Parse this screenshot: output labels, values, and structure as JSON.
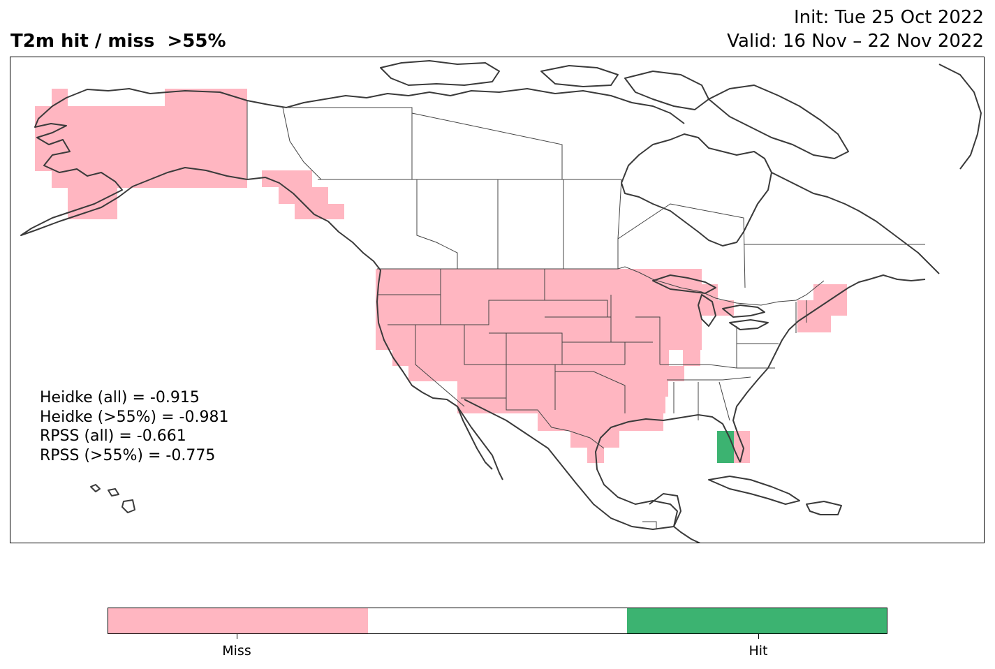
{
  "header": {
    "title": "T2m hit / miss  >55%",
    "init": "Init: Tue 25 Oct 2022",
    "valid": "Valid: 16 Nov – 22 Nov 2022"
  },
  "scores": [
    "Heidke (all) = -0.915",
    "Heidke (>55%) = -0.981",
    "RPSS (all) = -0.661",
    "RPSS (>55%) = -0.775"
  ],
  "colorbar": {
    "categories": [
      {
        "label": "Miss",
        "color": "#ffb6c1"
      },
      {
        "label": "",
        "color": "#ffffff"
      },
      {
        "label": "Hit",
        "color": "#3cb371"
      }
    ]
  },
  "map": {
    "region": "North America",
    "categories": {
      "miss": "#ffb6c1",
      "hit": "#3cb371"
    },
    "regions_miss": [
      "Alaska",
      "Alaska panhandle",
      "Western US",
      "Central US",
      "Upper Midwest",
      "Texas and Gulf coast",
      "New England"
    ],
    "regions_hit": [
      "Central Florida"
    ]
  }
}
